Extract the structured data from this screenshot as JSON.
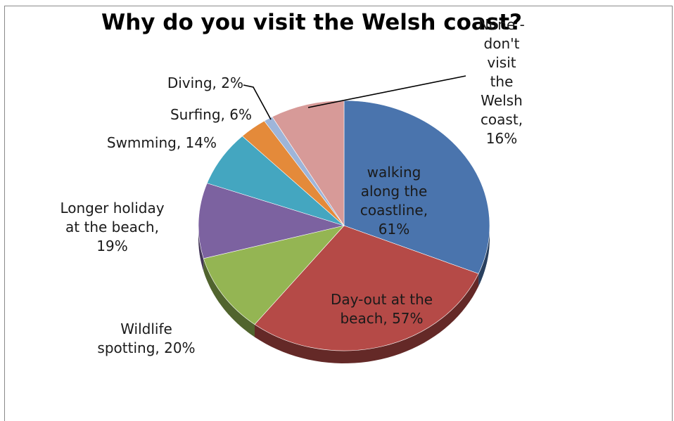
{
  "chart_data": {
    "type": "pie",
    "title": "Why do you visit the Welsh coast?",
    "slices": [
      {
        "name": "walking along the coastline",
        "value": 61,
        "label": "walking along the coastline, 61%",
        "color": "#4a74ad"
      },
      {
        "name": "Day-out at the beach",
        "value": 57,
        "label": "Day-out at the beach, 57%",
        "color": "#b54a47"
      },
      {
        "name": "Wildlife spotting",
        "value": 20,
        "label": "Wildlife spotting, 20%",
        "color": "#94b553"
      },
      {
        "name": "Longer holiday at the beach",
        "value": 19,
        "label": "Longer holiday at the beach, 19%",
        "color": "#7c62a0"
      },
      {
        "name": "Swmming",
        "value": 14,
        "label": "Swmming, 14%",
        "color": "#44a6c0"
      },
      {
        "name": "Surfing",
        "value": 6,
        "label": "Surfing, 6%",
        "color": "#e48a3a"
      },
      {
        "name": "Diving",
        "value": 2,
        "label": "Diving, 2%",
        "color": "#9eb5d9"
      },
      {
        "name": "None - don't visit the Welsh coast",
        "value": 16,
        "label": "None - don't visit the Welsh coast, 16%",
        "color": "#d79a98"
      }
    ],
    "legend": "none",
    "style": "3d-pie"
  },
  "labels": {
    "walking": [
      "walking",
      "along the",
      "coastline,",
      "61%"
    ],
    "dayout": [
      "Day-out at the",
      "beach, 57%"
    ],
    "wildlife": [
      "Wildlife",
      "spotting, 20%"
    ],
    "longer": [
      "Longer holiday",
      "at the beach,",
      "19%"
    ],
    "swimming": [
      "Swmming, 14%"
    ],
    "surfing": [
      "Surfing, 6%"
    ],
    "diving": [
      "Diving, 2%"
    ],
    "none": [
      "None -",
      "don't",
      "visit",
      "the",
      "Welsh",
      "coast,",
      "16%"
    ]
  }
}
